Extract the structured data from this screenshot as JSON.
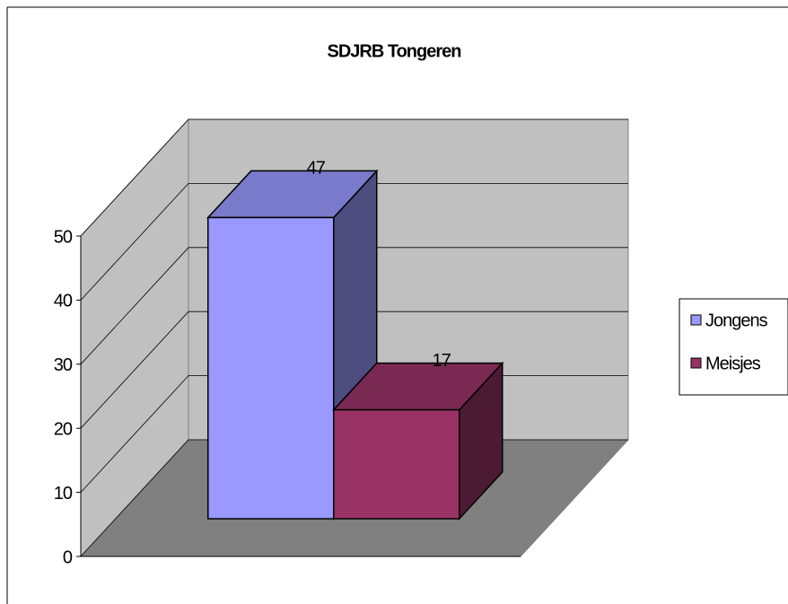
{
  "chart_data": {
    "type": "bar3d",
    "title": "SDJRB Tongeren",
    "categories": [
      null
    ],
    "series": [
      {
        "name": "Jongens",
        "color": "#9999ff",
        "values": [
          47
        ]
      },
      {
        "name": "Meisjes",
        "color": "#993366",
        "values": [
          17
        ]
      }
    ],
    "ylim": [
      0,
      50
    ],
    "yticks": [
      0,
      10,
      20,
      30,
      40,
      50
    ],
    "grid": true,
    "legend": "right"
  }
}
